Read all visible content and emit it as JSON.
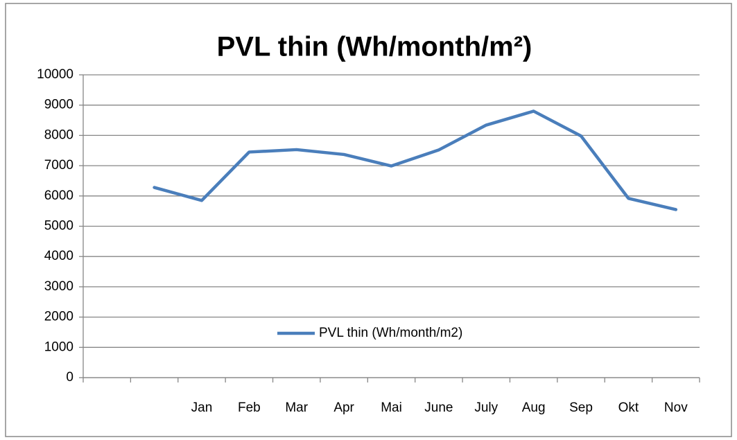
{
  "chart_data": {
    "type": "line",
    "title": "PVL thin (Wh/month/m²)",
    "categories": [
      null,
      null,
      "Jan",
      "Feb",
      "Mar",
      "Apr",
      "Mai",
      "June",
      "July",
      "Aug",
      "Sep",
      "Okt",
      "Nov"
    ],
    "series": [
      {
        "name": "PVL thin (Wh/month/m2)",
        "color": "#4a7ebb",
        "values": [
          null,
          6280,
          5850,
          7450,
          7530,
          7370,
          6990,
          7520,
          8340,
          8800,
          7980,
          5920,
          5550
        ]
      }
    ],
    "ylim": [
      0,
      10000
    ],
    "yticks": [
      0,
      1000,
      2000,
      3000,
      4000,
      5000,
      6000,
      7000,
      8000,
      9000,
      10000
    ],
    "grid": true,
    "legend": "center"
  }
}
